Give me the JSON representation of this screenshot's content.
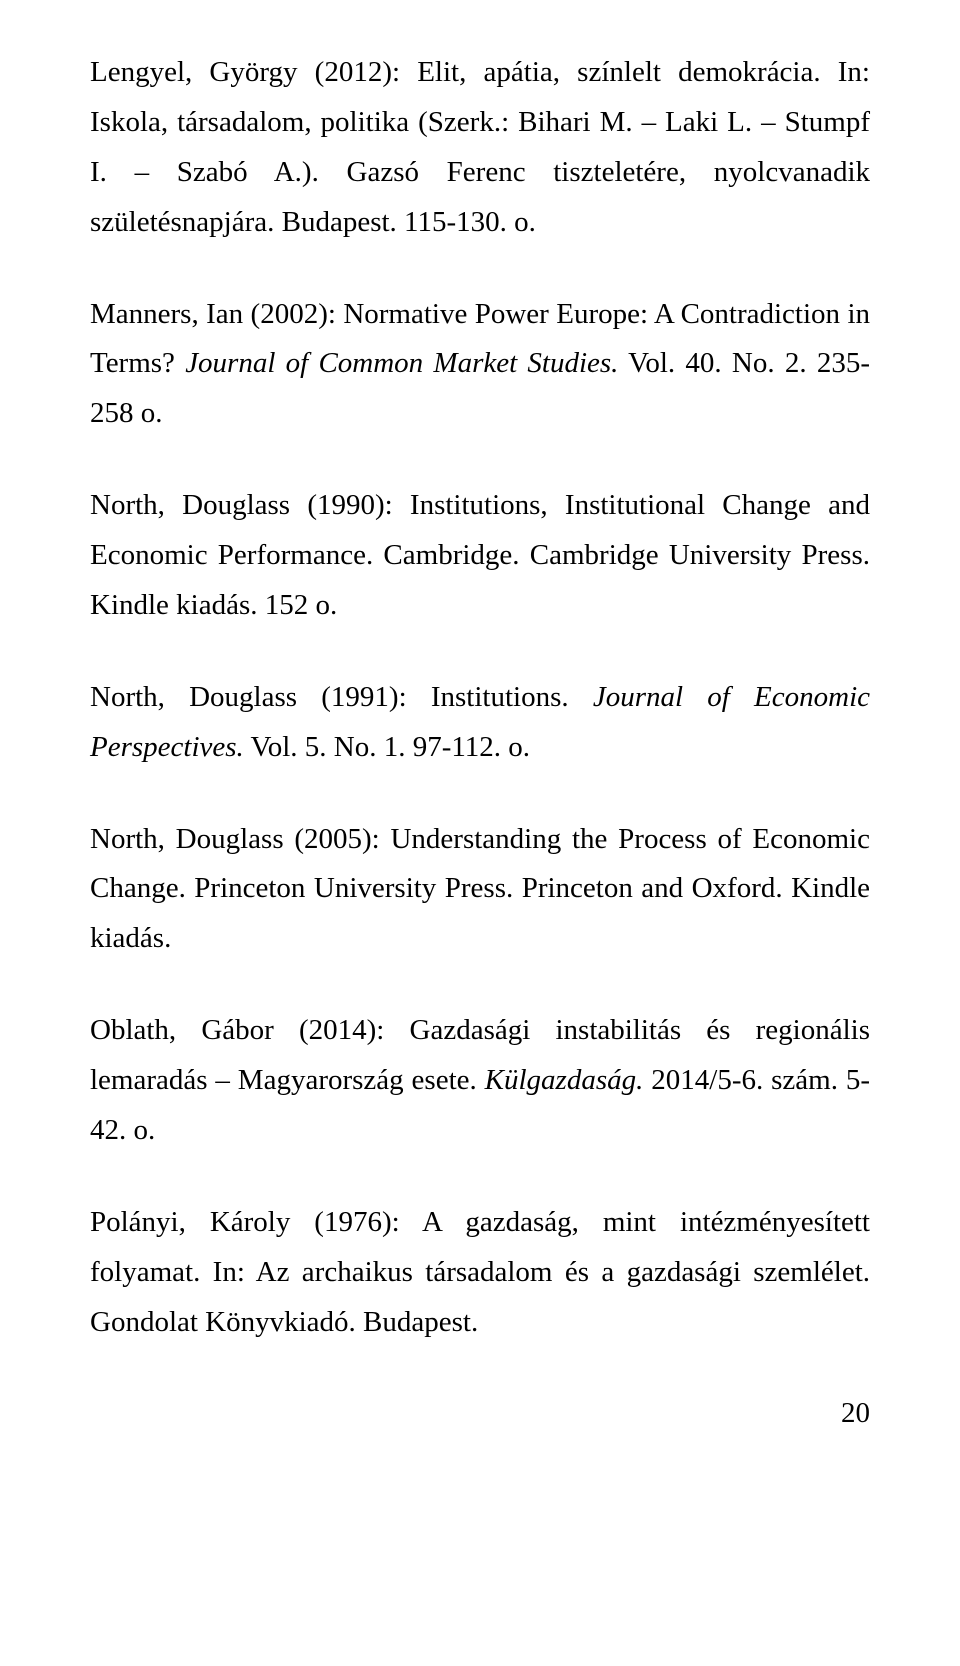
{
  "text_color": "#000000",
  "background_color": "#ffffff",
  "font_family": "Times New Roman",
  "font_size_pt": 14,
  "line_height": 1.72,
  "page_number": "20",
  "refs": [
    {
      "a": "Lengyel, György (2012): Elit, apátia, színlelt demokrácia. In: Iskola, társadalom, politika (Szerk.: Bihari M. – Laki L. – Stumpf I. – Szabó A.). Gazsó Ferenc tiszteletére, nyolcvanadik születésnapjára. Budapest. 115-130. o."
    },
    {
      "a": "Manners, Ian (2002): Normative Power Europe: A Contradiction in Terms? ",
      "i": "Journal of Common Market Studies.",
      "b": " Vol. 40. No. 2. 235-258 o."
    },
    {
      "a": "North, Douglass (1990): Institutions, Institutional Change and Economic Performance. Cambridge. Cambridge University Press. Kindle kiadás. 152 o."
    },
    {
      "a": "North, Douglass (1991): Institutions. ",
      "i": "Journal of Economic Perspectives.",
      "b": " Vol. 5. No. 1. 97-112. o."
    },
    {
      "a": "North, Douglass (2005): Understanding the Process of Economic Change. Princeton University Press. Princeton and Oxford. Kindle kiadás."
    },
    {
      "a": "Oblath, Gábor (2014): Gazdasági instabilitás és regionális lemaradás – Magyarország esete. ",
      "i": "Külgazdaság.",
      "b": " 2014/5-6. szám. 5-42. o."
    },
    {
      "a": "Polányi, Károly (1976): A gazdaság, mint intézményesített folyamat. In: Az archaikus társadalom és a gazdasági szemlélet. Gondolat Könyvkiadó. Budapest."
    }
  ]
}
